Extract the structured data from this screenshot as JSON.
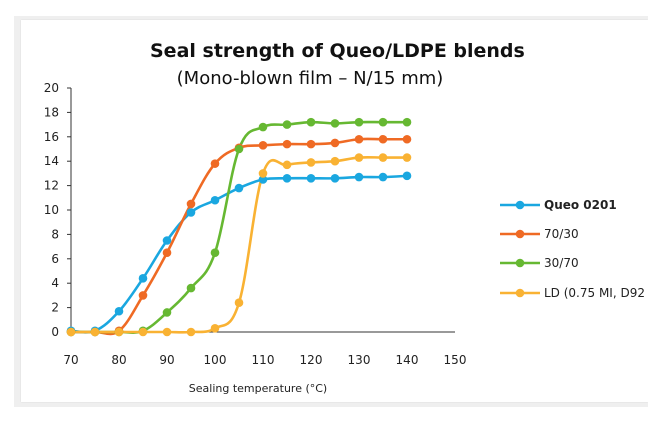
{
  "chart_data": {
    "type": "line",
    "title": "Seal strength of Queo/LDPE blends",
    "subtitle": "(Mono-blown film – N/15 mm)",
    "xlabel": "Sealing temperature (°C)",
    "ylabel": "",
    "xlim": [
      70,
      150
    ],
    "ylim": [
      0,
      20
    ],
    "x_ticks": [
      "70",
      "80",
      "90",
      "100",
      "110",
      "120",
      "130",
      "140",
      "150"
    ],
    "y_ticks": [
      "0",
      "2",
      "4",
      "6",
      "8",
      "10",
      "12",
      "14",
      "16",
      "18",
      "20"
    ],
    "grid": false,
    "legend_position": "right",
    "series": [
      {
        "name": "Queo 0201",
        "color": "#1aa7e0",
        "points": [
          [
            70,
            0.1
          ],
          [
            75,
            0.1
          ],
          [
            80,
            1.7
          ],
          [
            85,
            4.4
          ],
          [
            90,
            7.5
          ],
          [
            95,
            9.8
          ],
          [
            100,
            10.8
          ],
          [
            105,
            11.8
          ],
          [
            110,
            12.5
          ],
          [
            115,
            12.6
          ],
          [
            120,
            12.6
          ],
          [
            125,
            12.6
          ],
          [
            130,
            12.7
          ],
          [
            135,
            12.7
          ],
          [
            140,
            12.8
          ]
        ]
      },
      {
        "name": "70/30",
        "color": "#ef6a24",
        "points": [
          [
            70,
            0
          ],
          [
            75,
            0
          ],
          [
            80,
            0.1
          ],
          [
            85,
            3.0
          ],
          [
            90,
            6.5
          ],
          [
            95,
            10.5
          ],
          [
            100,
            13.8
          ],
          [
            105,
            15.1
          ],
          [
            110,
            15.3
          ],
          [
            115,
            15.4
          ],
          [
            120,
            15.4
          ],
          [
            125,
            15.5
          ],
          [
            130,
            15.8
          ],
          [
            135,
            15.8
          ],
          [
            140,
            15.8
          ]
        ]
      },
      {
        "name": "30/70",
        "color": "#66b832",
        "points": [
          [
            70,
            0
          ],
          [
            75,
            0
          ],
          [
            80,
            0
          ],
          [
            85,
            0.1
          ],
          [
            90,
            1.6
          ],
          [
            95,
            3.6
          ],
          [
            100,
            6.5
          ],
          [
            105,
            15.0
          ],
          [
            110,
            16.8
          ],
          [
            115,
            17.0
          ],
          [
            120,
            17.2
          ],
          [
            125,
            17.1
          ],
          [
            130,
            17.2
          ],
          [
            135,
            17.2
          ],
          [
            140,
            17.2
          ]
        ]
      },
      {
        "name": "LD (0.75 MI, D92",
        "color": "#f9b233",
        "points": [
          [
            70,
            0
          ],
          [
            75,
            0
          ],
          [
            80,
            0
          ],
          [
            85,
            0
          ],
          [
            90,
            0
          ],
          [
            95,
            0
          ],
          [
            100,
            0.3
          ],
          [
            105,
            2.4
          ],
          [
            110,
            13.0
          ],
          [
            115,
            13.7
          ],
          [
            120,
            13.9
          ],
          [
            125,
            14.0
          ],
          [
            130,
            14.3
          ],
          [
            135,
            14.3
          ],
          [
            140,
            14.3
          ]
        ]
      }
    ]
  }
}
